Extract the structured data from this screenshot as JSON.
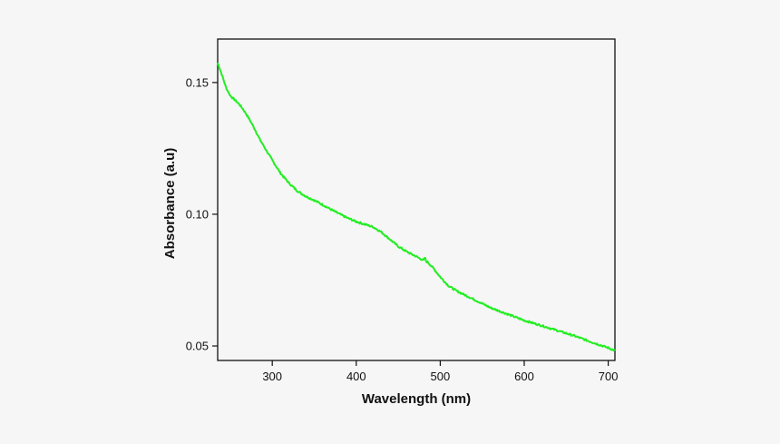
{
  "chart_data": {
    "type": "line",
    "xlabel": "Wavelength (nm)",
    "ylabel": "Absorbance (a.u)",
    "xlim": [
      235,
      708
    ],
    "ylim": [
      0.0445,
      0.1665
    ],
    "xticks": [
      300,
      400,
      500,
      600,
      700
    ],
    "yticks": [
      0.05,
      0.1,
      0.15
    ],
    "xtick_labels": [
      "300",
      "400",
      "500",
      "600",
      "700"
    ],
    "ytick_labels": [
      "0.05",
      "0.10",
      "0.15"
    ],
    "grid": false,
    "line_color": "#22ee22",
    "series": [
      {
        "x": [
          235,
          240,
          245,
          250,
          255,
          260,
          265,
          270,
          275,
          280,
          285,
          290,
          300,
          310,
          320,
          330,
          340,
          350,
          360,
          370,
          380,
          390,
          400,
          410,
          420,
          430,
          440,
          450,
          460,
          470,
          480,
          482,
          483,
          485,
          490,
          500,
          510,
          520,
          540,
          560,
          580,
          600,
          620,
          640,
          660,
          680,
          700,
          708
        ],
        "y": [
          0.1575,
          0.153,
          0.148,
          0.145,
          0.1435,
          0.142,
          0.14,
          0.1375,
          0.1348,
          0.1318,
          0.1285,
          0.1258,
          0.1205,
          0.1155,
          0.1118,
          0.1088,
          0.1068,
          0.1053,
          0.1036,
          0.1018,
          0.1001,
          0.0985,
          0.0972,
          0.0962,
          0.0952,
          0.0932,
          0.0905,
          0.0878,
          0.0858,
          0.0842,
          0.0825,
          0.0835,
          0.0822,
          0.0818,
          0.0802,
          0.0762,
          0.0728,
          0.0708,
          0.0677,
          0.0645,
          0.0621,
          0.0597,
          0.0578,
          0.0558,
          0.0538,
          0.0515,
          0.0493,
          0.0482
        ]
      }
    ]
  }
}
